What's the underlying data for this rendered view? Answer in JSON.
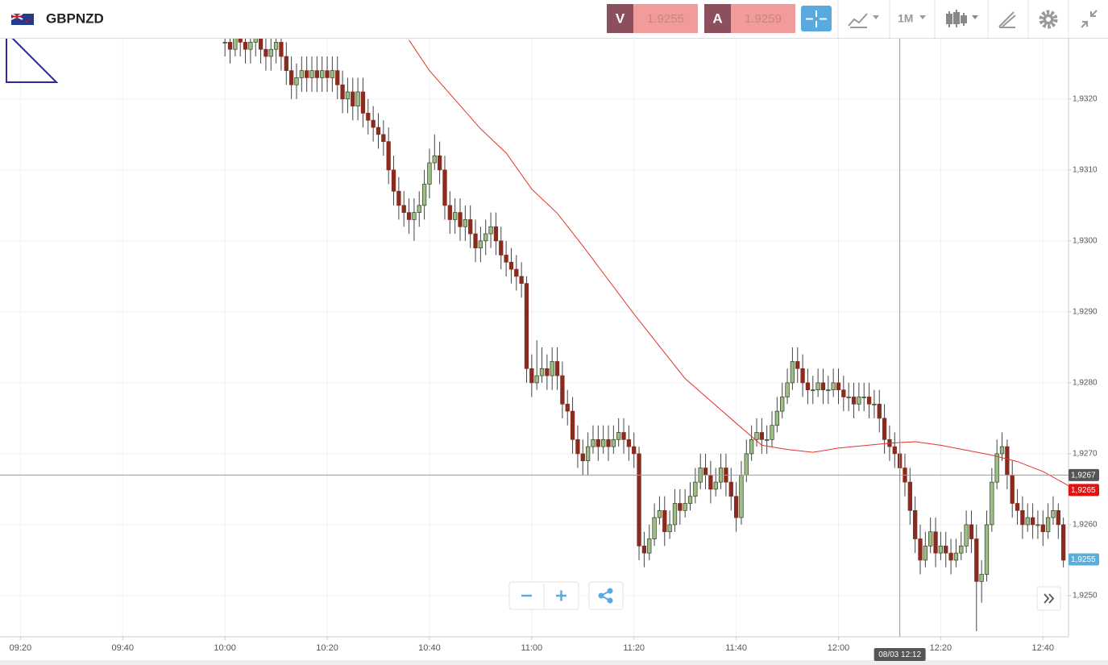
{
  "header": {
    "symbol": "GBPNZD",
    "sell_label": "V",
    "sell_price": 1.9255,
    "buy_label": "A",
    "buy_price": 1.9259,
    "timeframe": "1M"
  },
  "chart_data": {
    "type": "candlestick",
    "up_color": "#9dbf86",
    "down_color": "#8b2b1e",
    "xlim": [
      "09:16",
      "12:45"
    ],
    "xticks": [
      "09:20",
      "09:40",
      "10:00",
      "10:20",
      "10:40",
      "11:00",
      "11:20",
      "11:40",
      "12:00",
      "12:20",
      "12:40"
    ],
    "ylim": [
      1.92442,
      1.93285
    ],
    "yticks": [
      {
        "value": 1.925,
        "label": "1,9250"
      },
      {
        "value": 1.926,
        "label": "1,9260"
      },
      {
        "value": 1.927,
        "label": "1,9270"
      },
      {
        "value": 1.928,
        "label": "1,9280"
      },
      {
        "value": 1.929,
        "label": "1,9290"
      },
      {
        "value": 1.93,
        "label": "1,9300"
      },
      {
        "value": 1.931,
        "label": "1,9310"
      },
      {
        "value": 1.932,
        "label": "1,9320"
      }
    ],
    "grid": true,
    "x": [
      "10:00",
      "10:01",
      "10:02",
      "10:03",
      "10:04",
      "10:05",
      "10:06",
      "10:07",
      "10:08",
      "10:09",
      "10:10",
      "10:11",
      "10:12",
      "10:13",
      "10:14",
      "10:15",
      "10:16",
      "10:17",
      "10:18",
      "10:19",
      "10:20",
      "10:21",
      "10:22",
      "10:23",
      "10:24",
      "10:25",
      "10:26",
      "10:27",
      "10:28",
      "10:29",
      "10:30",
      "10:31",
      "10:32",
      "10:33",
      "10:34",
      "10:35",
      "10:36",
      "10:37",
      "10:38",
      "10:39",
      "10:40",
      "10:41",
      "10:42",
      "10:43",
      "10:44",
      "10:45",
      "10:46",
      "10:47",
      "10:48",
      "10:49",
      "10:50",
      "10:51",
      "10:52",
      "10:53",
      "10:54",
      "10:55",
      "10:56",
      "10:57",
      "10:58",
      "10:59",
      "11:00",
      "11:01",
      "11:02",
      "11:03",
      "11:04",
      "11:05",
      "11:06",
      "11:07",
      "11:08",
      "11:09",
      "11:10",
      "11:11",
      "11:12",
      "11:13",
      "11:14",
      "11:15",
      "11:16",
      "11:17",
      "11:18",
      "11:19",
      "11:20",
      "11:21",
      "11:22",
      "11:23",
      "11:24",
      "11:25",
      "11:26",
      "11:27",
      "11:28",
      "11:29",
      "11:30",
      "11:31",
      "11:32",
      "11:33",
      "11:34",
      "11:35",
      "11:36",
      "11:37",
      "11:38",
      "11:39",
      "11:40",
      "11:41",
      "11:42",
      "11:43",
      "11:44",
      "11:45",
      "11:46",
      "11:47",
      "11:48",
      "11:49",
      "11:50",
      "11:51",
      "11:52",
      "11:53",
      "11:54",
      "11:55",
      "11:56",
      "11:57",
      "11:58",
      "11:59",
      "12:00",
      "12:01",
      "12:02",
      "12:03",
      "12:04",
      "12:05",
      "12:06",
      "12:07",
      "12:08",
      "12:09",
      "12:10",
      "12:11",
      "12:12",
      "12:13",
      "12:14",
      "12:15",
      "12:16",
      "12:17",
      "12:18",
      "12:19",
      "12:20",
      "12:21",
      "12:22",
      "12:23",
      "12:24",
      "12:25",
      "12:26",
      "12:27",
      "12:28",
      "12:29",
      "12:30",
      "12:31",
      "12:32",
      "12:33",
      "12:34",
      "12:35",
      "12:36",
      "12:37",
      "12:38",
      "12:39",
      "12:40",
      "12:41",
      "12:42",
      "12:43",
      "12:44"
    ],
    "open": [
      1.9328,
      1.9328,
      1.9327,
      1.9329,
      1.9328,
      1.9327,
      1.9328,
      1.9329,
      1.9327,
      1.9326,
      1.9327,
      1.9328,
      1.9326,
      1.9324,
      1.9322,
      1.9323,
      1.9324,
      1.9323,
      1.9324,
      1.9323,
      1.9324,
      1.9323,
      1.9324,
      1.9322,
      1.932,
      1.9321,
      1.9319,
      1.9321,
      1.9318,
      1.9317,
      1.9316,
      1.9315,
      1.9314,
      1.931,
      1.9307,
      1.9305,
      1.9304,
      1.9303,
      1.9304,
      1.9305,
      1.9308,
      1.9311,
      1.9312,
      1.931,
      1.9305,
      1.9303,
      1.9304,
      1.9302,
      1.9303,
      1.9301,
      1.9299,
      1.93,
      1.9301,
      1.9302,
      1.93,
      1.9298,
      1.9297,
      1.9296,
      1.9295,
      1.9294,
      1.9282,
      1.928,
      1.9281,
      1.9282,
      1.9281,
      1.9283,
      1.9281,
      1.9277,
      1.9276,
      1.9272,
      1.927,
      1.9269,
      1.9271,
      1.9272,
      1.9271,
      1.9272,
      1.9271,
      1.9272,
      1.9273,
      1.9272,
      1.9271,
      1.927,
      1.9257,
      1.9256,
      1.9258,
      1.9261,
      1.9262,
      1.9259,
      1.926,
      1.9263,
      1.9262,
      1.9263,
      1.9264,
      1.9266,
      1.9268,
      1.9267,
      1.9265,
      1.9266,
      1.9268,
      1.9266,
      1.9264,
      1.9261,
      1.9267,
      1.927,
      1.9272,
      1.9273,
      1.9272,
      1.9272,
      1.9274,
      1.9276,
      1.9278,
      1.928,
      1.9283,
      1.9282,
      1.928,
      1.9279,
      1.9279,
      1.928,
      1.9279,
      1.9279,
      1.928,
      1.9279,
      1.9278,
      1.9278,
      1.9277,
      1.9278,
      1.9278,
      1.9277,
      1.9277,
      1.9275,
      1.9272,
      1.9271,
      1.927,
      1.9268,
      1.9266,
      1.9262,
      1.9258,
      1.9255,
      1.9257,
      1.9259,
      1.9256,
      1.9257,
      1.9256,
      1.9255,
      1.9256,
      1.9257,
      1.926,
      1.9258,
      1.9252,
      1.9253,
      1.926,
      1.9266,
      1.927,
      1.9271,
      1.9267,
      1.9263,
      1.9262,
      1.926,
      1.9261,
      1.926,
      1.926,
      1.9259,
      1.9261,
      1.9262,
      1.926
    ],
    "high": [
      1.933,
      1.933,
      1.9331,
      1.9331,
      1.933,
      1.933,
      1.9331,
      1.9331,
      1.9329,
      1.9329,
      1.933,
      1.933,
      1.9328,
      1.9326,
      1.9325,
      1.9326,
      1.9326,
      1.9326,
      1.9326,
      1.9326,
      1.9326,
      1.9326,
      1.9326,
      1.9324,
      1.9323,
      1.9323,
      1.9323,
      1.9323,
      1.932,
      1.9319,
      1.9318,
      1.9317,
      1.9316,
      1.9312,
      1.9309,
      1.9307,
      1.9306,
      1.9306,
      1.9307,
      1.931,
      1.9313,
      1.9315,
      1.9314,
      1.9312,
      1.9307,
      1.9306,
      1.9306,
      1.9305,
      1.9305,
      1.9303,
      1.9302,
      1.9303,
      1.9304,
      1.9304,
      1.9302,
      1.93,
      1.9299,
      1.9298,
      1.9297,
      1.9295,
      1.9284,
      1.9286,
      1.9285,
      1.9284,
      1.9285,
      1.9285,
      1.9283,
      1.9279,
      1.9278,
      1.9274,
      1.9272,
      1.9273,
      1.9274,
      1.9274,
      1.9274,
      1.9274,
      1.9274,
      1.9275,
      1.9275,
      1.9274,
      1.9273,
      1.9271,
      1.9259,
      1.926,
      1.9263,
      1.9264,
      1.9264,
      1.9262,
      1.9265,
      1.9265,
      1.9265,
      1.9266,
      1.9268,
      1.927,
      1.927,
      1.9269,
      1.9268,
      1.927,
      1.927,
      1.9268,
      1.9266,
      1.9269,
      1.9272,
      1.9274,
      1.9275,
      1.9275,
      1.9274,
      1.9276,
      1.9278,
      1.928,
      1.9282,
      1.9285,
      1.9285,
      1.9284,
      1.9282,
      1.9281,
      1.9282,
      1.9282,
      1.9281,
      1.9282,
      1.9282,
      1.9281,
      1.928,
      1.928,
      1.928,
      1.928,
      1.928,
      1.9279,
      1.9279,
      1.9277,
      1.9274,
      1.9273,
      1.9272,
      1.927,
      1.9268,
      1.9264,
      1.926,
      1.9259,
      1.9261,
      1.9261,
      1.9259,
      1.9259,
      1.9258,
      1.9258,
      1.9259,
      1.9262,
      1.9262,
      1.926,
      1.9255,
      1.9262,
      1.9268,
      1.9272,
      1.9273,
      1.9272,
      1.9269,
      1.9265,
      1.9264,
      1.9263,
      1.9263,
      1.9262,
      1.9262,
      1.9263,
      1.9264,
      1.9263,
      1.9261
    ],
    "low": [
      1.9326,
      1.9325,
      1.9326,
      1.9326,
      1.9325,
      1.9325,
      1.9326,
      1.9325,
      1.9324,
      1.9324,
      1.9325,
      1.9324,
      1.9322,
      1.932,
      1.932,
      1.9321,
      1.9321,
      1.9321,
      1.9321,
      1.9321,
      1.9321,
      1.9321,
      1.932,
      1.9318,
      1.9318,
      1.9317,
      1.9317,
      1.9316,
      1.9315,
      1.9314,
      1.9313,
      1.9312,
      1.9308,
      1.9305,
      1.9303,
      1.9302,
      1.9301,
      1.93,
      1.9302,
      1.9303,
      1.9306,
      1.931,
      1.9308,
      1.9303,
      1.9301,
      1.9301,
      1.93,
      1.93,
      1.9299,
      1.9297,
      1.9297,
      1.9298,
      1.9299,
      1.9298,
      1.9296,
      1.9295,
      1.9294,
      1.9293,
      1.9292,
      1.928,
      1.9278,
      1.9279,
      1.928,
      1.9279,
      1.9279,
      1.9279,
      1.9275,
      1.9274,
      1.927,
      1.9268,
      1.9267,
      1.9267,
      1.927,
      1.9269,
      1.927,
      1.9269,
      1.927,
      1.9271,
      1.927,
      1.9269,
      1.9268,
      1.9255,
      1.9254,
      1.9255,
      1.9257,
      1.926,
      1.9257,
      1.9258,
      1.9259,
      1.926,
      1.9261,
      1.9262,
      1.9263,
      1.9265,
      1.9265,
      1.9263,
      1.9264,
      1.9265,
      1.9264,
      1.9262,
      1.9259,
      1.926,
      1.9266,
      1.9269,
      1.9271,
      1.927,
      1.927,
      1.9271,
      1.9273,
      1.9275,
      1.9277,
      1.9279,
      1.928,
      1.9278,
      1.9277,
      1.9277,
      1.9278,
      1.9277,
      1.9277,
      1.9278,
      1.9277,
      1.9276,
      1.9276,
      1.9275,
      1.9276,
      1.9276,
      1.9275,
      1.9275,
      1.9273,
      1.927,
      1.9269,
      1.9268,
      1.9266,
      1.9264,
      1.926,
      1.9256,
      1.9253,
      1.9254,
      1.9256,
      1.9254,
      1.9255,
      1.9254,
      1.9253,
      1.9254,
      1.9255,
      1.9256,
      1.9256,
      1.9245,
      1.9249,
      1.9252,
      1.9259,
      1.9265,
      1.9269,
      1.9265,
      1.9261,
      1.926,
      1.9258,
      1.9259,
      1.9258,
      1.9258,
      1.9257,
      1.9258,
      1.926,
      1.9258,
      1.9254
    ],
    "close": [
      1.9328,
      1.9327,
      1.9329,
      1.9328,
      1.9327,
      1.9328,
      1.9329,
      1.9327,
      1.9326,
      1.9327,
      1.9328,
      1.9326,
      1.9324,
      1.9322,
      1.9323,
      1.9324,
      1.9323,
      1.9324,
      1.9323,
      1.9324,
      1.9323,
      1.9324,
      1.9322,
      1.932,
      1.9321,
      1.9319,
      1.9321,
      1.9318,
      1.9317,
      1.9316,
      1.9315,
      1.9314,
      1.931,
      1.9307,
      1.9305,
      1.9304,
      1.9303,
      1.9304,
      1.9305,
      1.9308,
      1.9311,
      1.9312,
      1.931,
      1.9305,
      1.9303,
      1.9304,
      1.9302,
      1.9303,
      1.9301,
      1.9299,
      1.93,
      1.9301,
      1.9302,
      1.93,
      1.9298,
      1.9297,
      1.9296,
      1.9295,
      1.9294,
      1.9282,
      1.928,
      1.9281,
      1.9282,
      1.9281,
      1.9283,
      1.9281,
      1.9277,
      1.9276,
      1.9272,
      1.927,
      1.9269,
      1.9271,
      1.9272,
      1.9271,
      1.9272,
      1.9271,
      1.9272,
      1.9273,
      1.9272,
      1.9271,
      1.927,
      1.9257,
      1.9256,
      1.9258,
      1.9261,
      1.9262,
      1.9259,
      1.926,
      1.9263,
      1.9262,
      1.9263,
      1.9264,
      1.9266,
      1.9268,
      1.9267,
      1.9265,
      1.9266,
      1.9268,
      1.9266,
      1.9264,
      1.9261,
      1.9267,
      1.927,
      1.9272,
      1.9273,
      1.9272,
      1.9272,
      1.9274,
      1.9276,
      1.9278,
      1.928,
      1.9283,
      1.9282,
      1.928,
      1.9279,
      1.9279,
      1.928,
      1.9279,
      1.9279,
      1.928,
      1.9279,
      1.9278,
      1.9278,
      1.9277,
      1.9278,
      1.9278,
      1.9277,
      1.9277,
      1.9275,
      1.9272,
      1.9271,
      1.927,
      1.9268,
      1.9266,
      1.9262,
      1.9258,
      1.9255,
      1.9257,
      1.9259,
      1.9256,
      1.9257,
      1.9256,
      1.9255,
      1.9256,
      1.9257,
      1.926,
      1.9258,
      1.9252,
      1.9253,
      1.926,
      1.9266,
      1.927,
      1.9271,
      1.9267,
      1.9263,
      1.9262,
      1.926,
      1.9261,
      1.926,
      1.926,
      1.9259,
      1.9261,
      1.9262,
      1.926,
      1.9255
    ],
    "moving_average": {
      "color": "#e0352b",
      "x": [
        "10:36",
        "10:40",
        "10:50",
        "10:55",
        "11:00",
        "11:05",
        "11:10",
        "11:20",
        "11:30",
        "11:40",
        "11:45",
        "11:50",
        "11:55",
        "12:00",
        "12:10",
        "12:15",
        "12:20",
        "12:30",
        "12:35",
        "12:40",
        "12:45"
      ],
      "values": [
        1.93283,
        1.9324,
        1.93158,
        1.93124,
        1.93073,
        1.93039,
        1.92993,
        1.92897,
        1.92806,
        1.92743,
        1.92712,
        1.92706,
        1.92702,
        1.92708,
        1.92715,
        1.92717,
        1.92712,
        1.92698,
        1.92689,
        1.92675,
        1.92655
      ]
    },
    "crosshair": {
      "x": "12:12",
      "time_label": "08/03 12:12",
      "price": {
        "value": 1.9267,
        "label": "1,9267"
      }
    },
    "ma_tag": {
      "value": 1.9265,
      "label": "1,9265",
      "color": "#e8100c"
    },
    "last_tag": {
      "value": 1.9255,
      "label": "1,9255",
      "color": "#5aaedc"
    }
  }
}
